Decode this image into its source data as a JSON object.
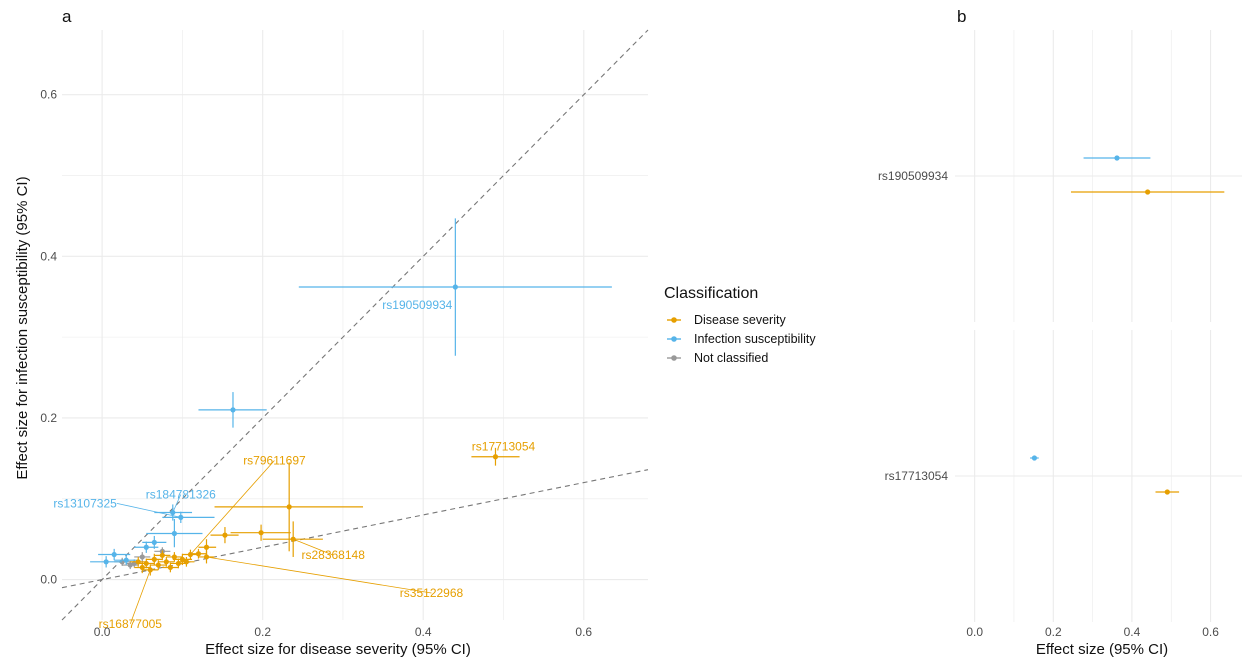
{
  "colors": {
    "disease_severity": "#E69F00",
    "infection_susceptibility": "#56B4E9",
    "not_classified": "#999999",
    "grid": "#EBEBEB",
    "reference_line": "#777777"
  },
  "chart_data": [
    {
      "panel_label": "a",
      "type": "scatter",
      "xlabel": "Effect size for disease severity (95% CI)",
      "ylabel": "Effect size for infection susceptibility (95% CI)",
      "xlim": [
        -0.05,
        0.68
      ],
      "ylim": [
        -0.05,
        0.68
      ],
      "x_ticks": [
        "0.0",
        "0.2",
        "0.4",
        "0.6"
      ],
      "y_ticks": [
        "0.0",
        "0.2",
        "0.4",
        "0.6"
      ],
      "grid": true,
      "reference_lines": [
        {
          "slope": 1.0,
          "intercept": 0.0,
          "style": "dashed"
        },
        {
          "slope": 0.2,
          "intercept": 0.0,
          "style": "dashed"
        }
      ],
      "legend": {
        "title": "Classification",
        "position": "right",
        "entries": [
          "Disease severity",
          "Infection susceptibility",
          "Not classified"
        ]
      },
      "series": [
        {
          "name": "Infection susceptibility",
          "points": [
            {
              "x": 0.44,
              "y": 0.362,
              "xlo": 0.245,
              "xhi": 0.635,
              "ylo": 0.277,
              "yhi": 0.447,
              "label": "rs190509934"
            },
            {
              "x": 0.163,
              "y": 0.21,
              "xlo": 0.12,
              "xhi": 0.205,
              "ylo": 0.188,
              "yhi": 0.232
            },
            {
              "x": 0.088,
              "y": 0.083,
              "xlo": 0.065,
              "xhi": 0.112,
              "ylo": 0.073,
              "yhi": 0.093,
              "label": "rs184781326"
            },
            {
              "x": 0.098,
              "y": 0.077,
              "xlo": 0.075,
              "xhi": 0.14,
              "ylo": 0.07,
              "yhi": 0.084,
              "label": "rs13107325"
            },
            {
              "x": 0.09,
              "y": 0.057,
              "xlo": 0.055,
              "xhi": 0.125,
              "ylo": 0.04,
              "yhi": 0.075
            },
            {
              "x": 0.065,
              "y": 0.046,
              "xlo": 0.05,
              "xhi": 0.08,
              "ylo": 0.038,
              "yhi": 0.054
            },
            {
              "x": 0.055,
              "y": 0.04,
              "xlo": 0.04,
              "xhi": 0.07,
              "ylo": 0.033,
              "yhi": 0.047
            },
            {
              "x": 0.015,
              "y": 0.031,
              "xlo": -0.005,
              "xhi": 0.035,
              "ylo": 0.024,
              "yhi": 0.038
            },
            {
              "x": 0.005,
              "y": 0.022,
              "xlo": -0.015,
              "xhi": 0.025,
              "ylo": 0.015,
              "yhi": 0.029
            },
            {
              "x": 0.03,
              "y": 0.024,
              "xlo": 0.015,
              "xhi": 0.045,
              "ylo": 0.018,
              "yhi": 0.03
            }
          ]
        },
        {
          "name": "Disease severity",
          "points": [
            {
              "x": 0.49,
              "y": 0.152,
              "xlo": 0.46,
              "xhi": 0.52,
              "ylo": 0.141,
              "yhi": 0.163,
              "label": "rs17713054"
            },
            {
              "x": 0.233,
              "y": 0.09,
              "xlo": 0.14,
              "xhi": 0.325,
              "ylo": 0.035,
              "yhi": 0.145
            },
            {
              "x": 0.238,
              "y": 0.05,
              "xlo": 0.2,
              "xhi": 0.275,
              "ylo": 0.028,
              "yhi": 0.072,
              "label": "rs28368148"
            },
            {
              "x": 0.198,
              "y": 0.058,
              "xlo": 0.16,
              "xhi": 0.235,
              "ylo": 0.048,
              "yhi": 0.068
            },
            {
              "x": 0.153,
              "y": 0.055,
              "xlo": 0.135,
              "xhi": 0.17,
              "ylo": 0.045,
              "yhi": 0.065
            },
            {
              "x": 0.13,
              "y": 0.04,
              "xlo": 0.12,
              "xhi": 0.142,
              "ylo": 0.03,
              "yhi": 0.05
            },
            {
              "x": 0.13,
              "y": 0.028,
              "xlo": 0.12,
              "xhi": 0.14,
              "ylo": 0.02,
              "yhi": 0.036,
              "label": "rs35122968"
            },
            {
              "x": 0.11,
              "y": 0.031,
              "xlo": 0.1,
              "xhi": 0.12,
              "ylo": 0.025,
              "yhi": 0.037,
              "label": "rs79611697"
            },
            {
              "x": 0.1,
              "y": 0.025,
              "xlo": 0.088,
              "xhi": 0.112,
              "ylo": 0.018,
              "yhi": 0.032
            },
            {
              "x": 0.09,
              "y": 0.028,
              "xlo": 0.08,
              "xhi": 0.1,
              "ylo": 0.022,
              "yhi": 0.034
            },
            {
              "x": 0.08,
              "y": 0.022,
              "xlo": 0.07,
              "xhi": 0.09,
              "ylo": 0.016,
              "yhi": 0.028
            },
            {
              "x": 0.075,
              "y": 0.03,
              "xlo": 0.065,
              "xhi": 0.085,
              "ylo": 0.024,
              "yhi": 0.036
            },
            {
              "x": 0.07,
              "y": 0.018,
              "xlo": 0.06,
              "xhi": 0.08,
              "ylo": 0.012,
              "yhi": 0.024
            },
            {
              "x": 0.065,
              "y": 0.025,
              "xlo": 0.055,
              "xhi": 0.075,
              "ylo": 0.018,
              "yhi": 0.032
            },
            {
              "x": 0.06,
              "y": 0.012,
              "xlo": 0.05,
              "xhi": 0.07,
              "ylo": 0.005,
              "yhi": 0.019,
              "label": "rs16877005"
            },
            {
              "x": 0.055,
              "y": 0.02,
              "xlo": 0.045,
              "xhi": 0.065,
              "ylo": 0.014,
              "yhi": 0.026
            },
            {
              "x": 0.05,
              "y": 0.015,
              "xlo": 0.04,
              "xhi": 0.06,
              "ylo": 0.008,
              "yhi": 0.022
            },
            {
              "x": 0.045,
              "y": 0.022,
              "xlo": 0.035,
              "xhi": 0.055,
              "ylo": 0.016,
              "yhi": 0.028
            },
            {
              "x": 0.085,
              "y": 0.015,
              "xlo": 0.075,
              "xhi": 0.095,
              "ylo": 0.009,
              "yhi": 0.021
            },
            {
              "x": 0.095,
              "y": 0.02,
              "xlo": 0.085,
              "xhi": 0.105,
              "ylo": 0.014,
              "yhi": 0.026
            },
            {
              "x": 0.105,
              "y": 0.022,
              "xlo": 0.095,
              "xhi": 0.115,
              "ylo": 0.016,
              "yhi": 0.028
            },
            {
              "x": 0.12,
              "y": 0.032,
              "xlo": 0.11,
              "xhi": 0.13,
              "ylo": 0.026,
              "yhi": 0.038
            }
          ]
        },
        {
          "name": "Not classified",
          "points": [
            {
              "x": 0.025,
              "y": 0.022,
              "xlo": 0.015,
              "xhi": 0.035,
              "ylo": 0.017,
              "yhi": 0.027
            },
            {
              "x": 0.04,
              "y": 0.02,
              "xlo": 0.03,
              "xhi": 0.05,
              "ylo": 0.015,
              "yhi": 0.025
            },
            {
              "x": 0.075,
              "y": 0.035,
              "xlo": 0.065,
              "xhi": 0.085,
              "ylo": 0.03,
              "yhi": 0.04
            },
            {
              "x": 0.05,
              "y": 0.028,
              "xlo": 0.04,
              "xhi": 0.06,
              "ylo": 0.022,
              "yhi": 0.034
            },
            {
              "x": 0.035,
              "y": 0.018,
              "xlo": 0.025,
              "xhi": 0.045,
              "ylo": 0.013,
              "yhi": 0.023
            }
          ]
        }
      ]
    },
    {
      "panel_label": "b",
      "type": "forest",
      "xlabel": "Effect size (95% CI)",
      "xlim": [
        -0.05,
        0.68
      ],
      "x_ticks": [
        "0.0",
        "0.2",
        "0.4",
        "0.6"
      ],
      "grid": true,
      "facets": [
        {
          "label": "rs190509934",
          "points": [
            {
              "series": "Infection susceptibility",
              "x": 0.362,
              "lo": 0.277,
              "hi": 0.447
            },
            {
              "series": "Disease severity",
              "x": 0.44,
              "lo": 0.245,
              "hi": 0.635
            }
          ]
        },
        {
          "label": "rs17713054",
          "points": [
            {
              "series": "Infection susceptibility",
              "x": 0.152,
              "lo": 0.141,
              "hi": 0.163
            },
            {
              "series": "Disease severity",
              "x": 0.49,
              "lo": 0.46,
              "hi": 0.52
            }
          ]
        }
      ]
    }
  ]
}
